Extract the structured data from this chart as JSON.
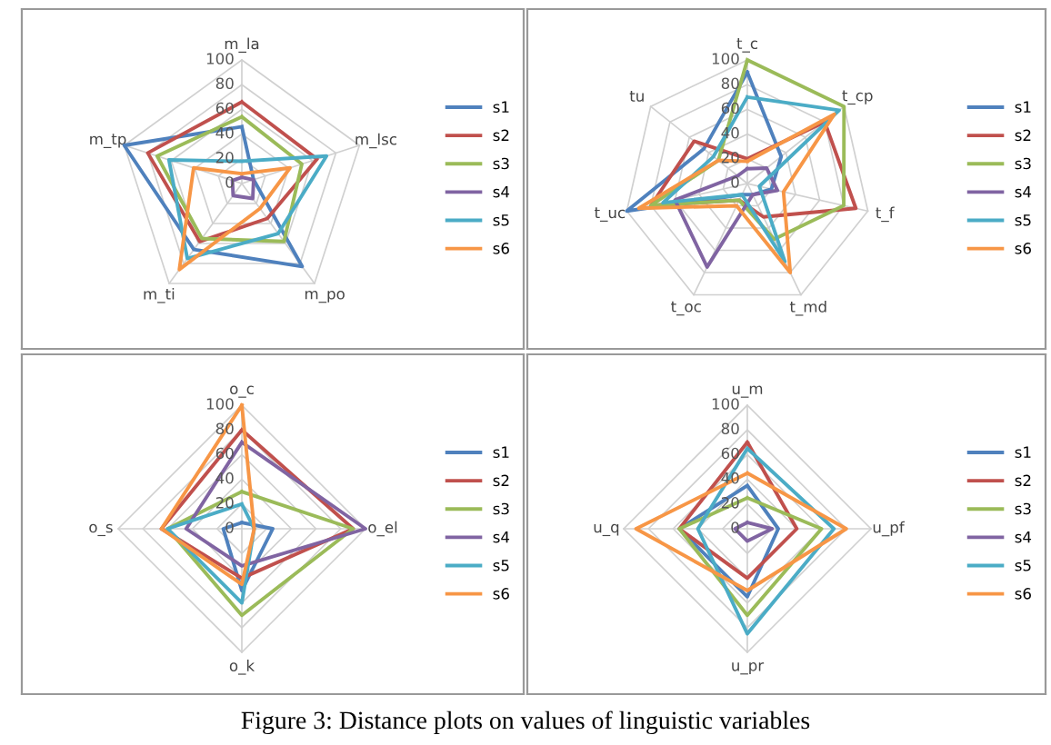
{
  "chart_data": [
    {
      "type": "radar",
      "categories": [
        "m_la",
        "m_lsc",
        "m_po",
        "m_ti",
        "m_tp"
      ],
      "ylim": [
        0,
        100
      ],
      "yticks": [
        0,
        20,
        40,
        60,
        80,
        100
      ],
      "grid": true,
      "legend": "right",
      "annotations": [
        "Figure 3: Distance plots on values of linguistic variables"
      ],
      "series": [
        {
          "name": "s1",
          "color": "#4f81bd",
          "values": [
            46,
            10,
            83,
            66,
            100
          ]
        },
        {
          "name": "s2",
          "color": "#c0504d",
          "values": [
            66,
            64,
            35,
            58,
            80
          ]
        },
        {
          "name": "s3",
          "color": "#9bbb59",
          "values": [
            54,
            51,
            58,
            55,
            72
          ]
        },
        {
          "name": "s4",
          "color": "#8064a2",
          "values": [
            5,
            10,
            15,
            12,
            8
          ]
        },
        {
          "name": "s5",
          "color": "#4bacc6",
          "values": [
            18,
            72,
            50,
            75,
            62
          ]
        },
        {
          "name": "s6",
          "color": "#f79646",
          "values": [
            8,
            41,
            25,
            86,
            41
          ]
        }
      ]
    },
    {
      "type": "radar",
      "categories": [
        "t_c",
        "t_cp",
        "t_f",
        "t_md",
        "t_oc",
        "t_uc",
        "tu"
      ],
      "ylim": [
        0,
        100
      ],
      "yticks": [
        0,
        20,
        40,
        60,
        80,
        100
      ],
      "grid": true,
      "legend": "right",
      "series": [
        {
          "name": "s1",
          "color": "#4f81bd",
          "values": [
            90,
            35,
            20,
            10,
            10,
            100,
            45
          ]
        },
        {
          "name": "s2",
          "color": "#c0504d",
          "values": [
            20,
            80,
            90,
            30,
            15,
            80,
            55
          ]
        },
        {
          "name": "s3",
          "color": "#9bbb59",
          "values": [
            100,
            100,
            80,
            50,
            15,
            80,
            30
          ]
        },
        {
          "name": "s4",
          "color": "#8064a2",
          "values": [
            12,
            20,
            25,
            10,
            75,
            60,
            10
          ]
        },
        {
          "name": "s5",
          "color": "#4bacc6",
          "values": [
            70,
            95,
            10,
            70,
            10,
            70,
            35
          ]
        },
        {
          "name": "s6",
          "color": "#f79646",
          "values": [
            18,
            90,
            30,
            80,
            20,
            90,
            30
          ]
        }
      ]
    },
    {
      "type": "radar",
      "categories": [
        "o_c",
        "o_el",
        "o_k",
        "o_s"
      ],
      "ylim": [
        0,
        100
      ],
      "yticks": [
        0,
        20,
        40,
        60,
        80,
        100
      ],
      "grid": true,
      "legend": "right",
      "series": [
        {
          "name": "s1",
          "color": "#4f81bd",
          "values": [
            5,
            25,
            50,
            15
          ]
        },
        {
          "name": "s2",
          "color": "#c0504d",
          "values": [
            80,
            90,
            40,
            65
          ]
        },
        {
          "name": "s3",
          "color": "#9bbb59",
          "values": [
            30,
            90,
            70,
            60
          ]
        },
        {
          "name": "s4",
          "color": "#8064a2",
          "values": [
            70,
            100,
            30,
            45
          ]
        },
        {
          "name": "s5",
          "color": "#4bacc6",
          "values": [
            20,
            10,
            60,
            60
          ]
        },
        {
          "name": "s6",
          "color": "#f79646",
          "values": [
            100,
            10,
            45,
            65
          ]
        }
      ]
    },
    {
      "type": "radar",
      "categories": [
        "u_m",
        "u_pf",
        "u_pr",
        "u_q"
      ],
      "ylim": [
        0,
        100
      ],
      "yticks": [
        0,
        20,
        40,
        60,
        80,
        100
      ],
      "grid": true,
      "legend": "right",
      "series": [
        {
          "name": "s1",
          "color": "#4f81bd",
          "values": [
            35,
            25,
            55,
            55
          ]
        },
        {
          "name": "s2",
          "color": "#c0504d",
          "values": [
            70,
            40,
            40,
            55
          ]
        },
        {
          "name": "s3",
          "color": "#9bbb59",
          "values": [
            25,
            60,
            70,
            55
          ]
        },
        {
          "name": "s4",
          "color": "#8064a2",
          "values": [
            5,
            20,
            10,
            10
          ]
        },
        {
          "name": "s5",
          "color": "#4bacc6",
          "values": [
            65,
            70,
            85,
            40
          ]
        },
        {
          "name": "s6",
          "color": "#f79646",
          "values": [
            45,
            80,
            50,
            90
          ]
        }
      ]
    }
  ]
}
